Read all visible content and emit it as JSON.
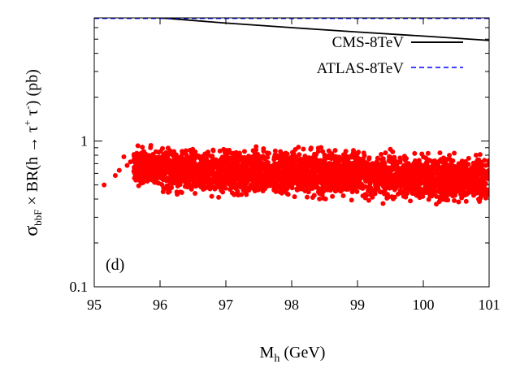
{
  "chart_data": {
    "type": "scatter",
    "title": "",
    "panel_label": "(d)",
    "xlabel_main": "M",
    "xlabel_sub": "h",
    "xlabel_tail": " (GeV)",
    "ylabel_sigma": "σ",
    "ylabel_sub": "bbF",
    "ylabel_mid": " × BR(h → τ",
    "ylabel_sup1": "+",
    "ylabel_tau": " τ",
    "ylabel_sup2": "-",
    "ylabel_tail": ") (pb)",
    "xlim": [
      95,
      101
    ],
    "ylim": [
      0.1,
      7.0
    ],
    "yscale": "log",
    "xticks": [
      95,
      96,
      97,
      98,
      99,
      100,
      101
    ],
    "xtick_labels": [
      "95",
      "96",
      "97",
      "98",
      "99",
      "100",
      "101"
    ],
    "yticks": [
      0.1,
      1
    ],
    "ytick_labels": [
      "0.1",
      "1"
    ],
    "ytick_minor": [
      0.2,
      0.3,
      0.4,
      0.5,
      0.6,
      0.7,
      0.8,
      0.9,
      2,
      3,
      4,
      5,
      6
    ],
    "legend_position": "top-right",
    "series": [
      {
        "name": "CMS-8TeV",
        "kind": "line",
        "color": "#000000",
        "dash": "solid",
        "x": [
          95,
          96,
          97,
          98,
          99,
          100,
          101
        ],
        "y": [
          7.4,
          7.0,
          6.45,
          6.0,
          5.6,
          5.25,
          4.9
        ]
      },
      {
        "name": "ATLAS-8TeV",
        "kind": "line",
        "color": "#0000ff",
        "dash": "dashed",
        "x": [
          95,
          101
        ],
        "y": [
          6.95,
          6.95
        ]
      },
      {
        "name": "",
        "kind": "scatter",
        "color": "#ff0000",
        "x_range": [
          95.15,
          101.0
        ],
        "y_band": [
          {
            "x": 95.15,
            "y": [
              0.5,
              0.5
            ]
          },
          {
            "x": 95.3,
            "y": [
              0.57,
              0.62
            ]
          },
          {
            "x": 95.45,
            "y": [
              0.6,
              0.8
            ]
          },
          {
            "x": 95.6,
            "y": [
              0.48,
              0.97
            ]
          },
          {
            "x": 96.0,
            "y": [
              0.4,
              1.0
            ]
          },
          {
            "x": 97.0,
            "y": [
              0.37,
              0.98
            ]
          },
          {
            "x": 98.0,
            "y": [
              0.38,
              0.97
            ]
          },
          {
            "x": 99.0,
            "y": [
              0.37,
              0.95
            ]
          },
          {
            "x": 100.0,
            "y": [
              0.35,
              0.92
            ]
          },
          {
            "x": 101.0,
            "y": [
              0.33,
              0.88
            ]
          }
        ],
        "n_points": 3200
      }
    ]
  }
}
